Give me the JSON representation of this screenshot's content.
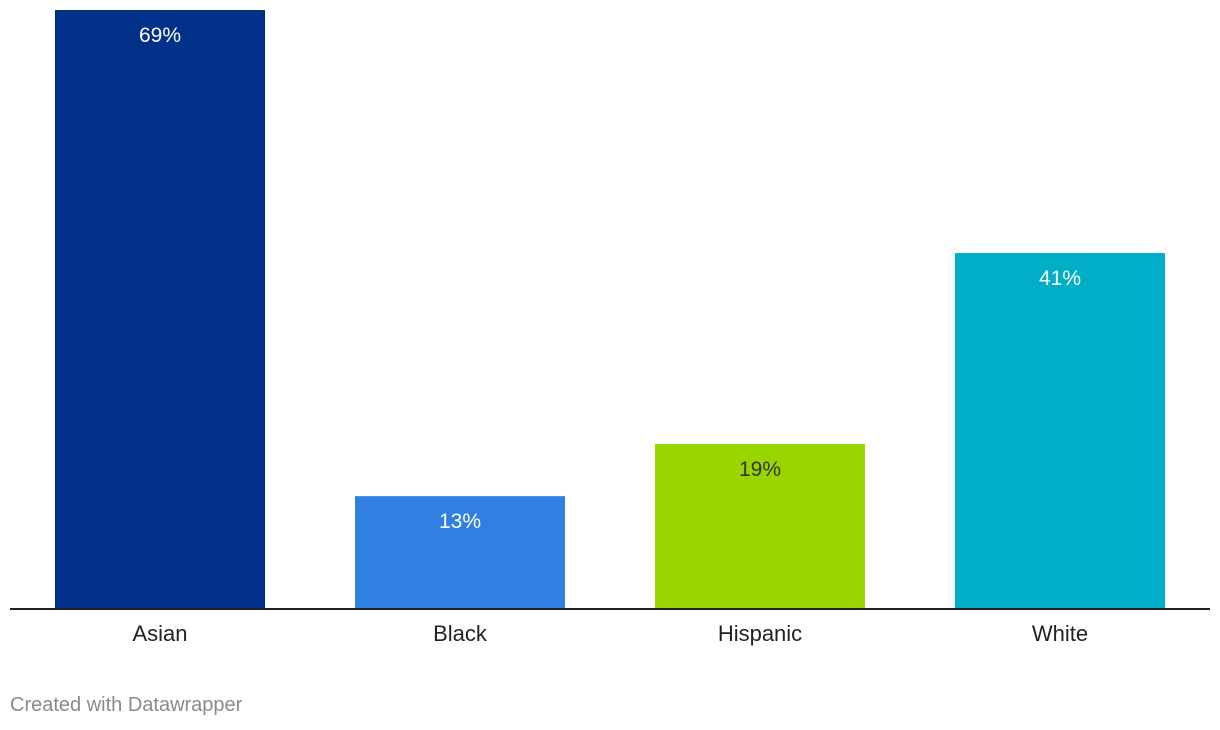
{
  "chart_data": {
    "type": "bar",
    "categories": [
      "Asian",
      "Black",
      "Hispanic",
      "White"
    ],
    "values": [
      69,
      13,
      19,
      41
    ],
    "value_labels": [
      "69%",
      "13%",
      "19%",
      "41%"
    ],
    "colors": [
      "#003087",
      "#2f80e0",
      "#99d600",
      "#00aec7"
    ],
    "label_colors": [
      "#ffffff",
      "#ffffff",
      "#333333",
      "#ffffff"
    ],
    "ylim": [
      0,
      69
    ],
    "grid": false,
    "legend": "none"
  },
  "footer": {
    "credit": "Created with Datawrapper"
  }
}
